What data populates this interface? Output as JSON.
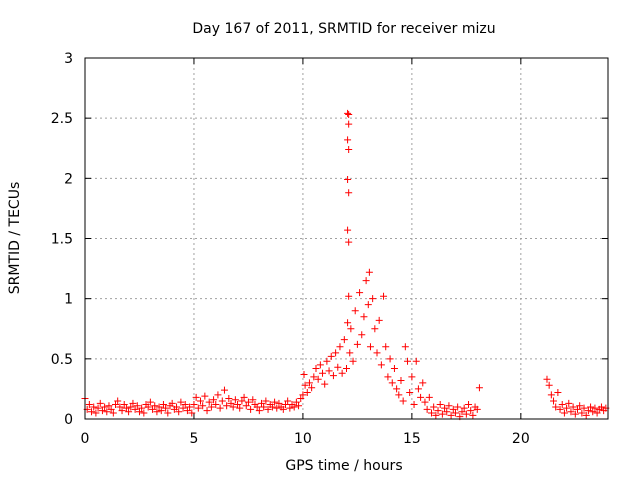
{
  "chart_data": {
    "type": "scatter",
    "title": "Day 167 of 2011, SRMTID for receiver mizu",
    "xlabel": "GPS time / hours",
    "ylabel": "SRMTID / TECUs",
    "xlim": [
      0,
      24
    ],
    "ylim": [
      0,
      3
    ],
    "xticks": [
      0,
      5,
      10,
      15,
      20
    ],
    "yticks": [
      0,
      0.5,
      1,
      1.5,
      2,
      2.5,
      3
    ],
    "xtick_labels": [
      "0",
      "5",
      "10",
      "15",
      "20"
    ],
    "ytick_labels": [
      "0",
      "0.5",
      "1",
      "1.5",
      "2",
      "2.5",
      "3"
    ],
    "grid": true,
    "marker": "+",
    "color": "#ff0000",
    "series": [
      {
        "name": "SRMTID",
        "points": [
          [
            0.0,
            0.17
          ],
          [
            0.1,
            0.08
          ],
          [
            0.2,
            0.12
          ],
          [
            0.3,
            0.06
          ],
          [
            0.4,
            0.1
          ],
          [
            0.5,
            0.05
          ],
          [
            0.6,
            0.09
          ],
          [
            0.7,
            0.13
          ],
          [
            0.8,
            0.07
          ],
          [
            0.9,
            0.1
          ],
          [
            1.0,
            0.06
          ],
          [
            1.1,
            0.11
          ],
          [
            1.2,
            0.08
          ],
          [
            1.3,
            0.05
          ],
          [
            1.4,
            0.12
          ],
          [
            1.5,
            0.15
          ],
          [
            1.6,
            0.1
          ],
          [
            1.7,
            0.07
          ],
          [
            1.8,
            0.12
          ],
          [
            1.9,
            0.09
          ],
          [
            2.0,
            0.06
          ],
          [
            2.1,
            0.1
          ],
          [
            2.2,
            0.13
          ],
          [
            2.3,
            0.08
          ],
          [
            2.4,
            0.11
          ],
          [
            2.5,
            0.06
          ],
          [
            2.6,
            0.09
          ],
          [
            2.7,
            0.05
          ],
          [
            2.8,
            0.12
          ],
          [
            2.9,
            0.1
          ],
          [
            3.0,
            0.14
          ],
          [
            3.1,
            0.08
          ],
          [
            3.2,
            0.11
          ],
          [
            3.3,
            0.06
          ],
          [
            3.4,
            0.1
          ],
          [
            3.5,
            0.07
          ],
          [
            3.6,
            0.12
          ],
          [
            3.7,
            0.09
          ],
          [
            3.8,
            0.05
          ],
          [
            3.9,
            0.11
          ],
          [
            4.0,
            0.13
          ],
          [
            4.1,
            0.08
          ],
          [
            4.2,
            0.1
          ],
          [
            4.3,
            0.06
          ],
          [
            4.4,
            0.14
          ],
          [
            4.5,
            0.09
          ],
          [
            4.6,
            0.12
          ],
          [
            4.7,
            0.07
          ],
          [
            4.8,
            0.1
          ],
          [
            4.9,
            0.05
          ],
          [
            5.0,
            0.12
          ],
          [
            5.1,
            0.18
          ],
          [
            5.2,
            0.09
          ],
          [
            5.3,
            0.15
          ],
          [
            5.4,
            0.11
          ],
          [
            5.5,
            0.19
          ],
          [
            5.6,
            0.07
          ],
          [
            5.7,
            0.14
          ],
          [
            5.8,
            0.1
          ],
          [
            5.9,
            0.16
          ],
          [
            6.0,
            0.12
          ],
          [
            6.1,
            0.2
          ],
          [
            6.2,
            0.09
          ],
          [
            6.3,
            0.15
          ],
          [
            6.4,
            0.24
          ],
          [
            6.5,
            0.11
          ],
          [
            6.6,
            0.17
          ],
          [
            6.7,
            0.13
          ],
          [
            6.8,
            0.1
          ],
          [
            6.9,
            0.16
          ],
          [
            7.0,
            0.12
          ],
          [
            7.1,
            0.09
          ],
          [
            7.2,
            0.15
          ],
          [
            7.3,
            0.18
          ],
          [
            7.4,
            0.11
          ],
          [
            7.5,
            0.14
          ],
          [
            7.6,
            0.08
          ],
          [
            7.7,
            0.16
          ],
          [
            7.8,
            0.12
          ],
          [
            7.9,
            0.1
          ],
          [
            8.0,
            0.07
          ],
          [
            8.1,
            0.13
          ],
          [
            8.2,
            0.1
          ],
          [
            8.3,
            0.15
          ],
          [
            8.4,
            0.08
          ],
          [
            8.5,
            0.12
          ],
          [
            8.6,
            0.1
          ],
          [
            8.7,
            0.14
          ],
          [
            8.8,
            0.09
          ],
          [
            8.9,
            0.13
          ],
          [
            9.0,
            0.1
          ],
          [
            9.1,
            0.08
          ],
          [
            9.2,
            0.12
          ],
          [
            9.3,
            0.15
          ],
          [
            9.4,
            0.09
          ],
          [
            9.5,
            0.12
          ],
          [
            9.6,
            0.1
          ],
          [
            9.7,
            0.14
          ],
          [
            9.8,
            0.11
          ],
          [
            9.9,
            0.17
          ],
          [
            10.0,
            0.2
          ],
          [
            10.05,
            0.37
          ],
          [
            10.1,
            0.28
          ],
          [
            10.2,
            0.22
          ],
          [
            10.3,
            0.3
          ],
          [
            10.4,
            0.26
          ],
          [
            10.5,
            0.35
          ],
          [
            10.6,
            0.42
          ],
          [
            10.7,
            0.33
          ],
          [
            10.8,
            0.45
          ],
          [
            10.9,
            0.38
          ],
          [
            11.0,
            0.29
          ],
          [
            11.1,
            0.48
          ],
          [
            11.2,
            0.4
          ],
          [
            11.3,
            0.52
          ],
          [
            11.4,
            0.36
          ],
          [
            11.5,
            0.55
          ],
          [
            11.6,
            0.43
          ],
          [
            11.7,
            0.6
          ],
          [
            11.8,
            0.38
          ],
          [
            11.9,
            0.66
          ],
          [
            12.0,
            0.42
          ],
          [
            12.05,
            0.8
          ],
          [
            12.1,
            1.02
          ],
          [
            12.15,
            0.55
          ],
          [
            12.2,
            0.75
          ],
          [
            12.3,
            0.48
          ],
          [
            12.4,
            0.9
          ],
          [
            12.5,
            0.62
          ],
          [
            12.6,
            1.05
          ],
          [
            12.7,
            0.7
          ],
          [
            12.8,
            0.85
          ],
          [
            12.9,
            1.15
          ],
          [
            13.0,
            0.95
          ],
          [
            13.05,
            1.22
          ],
          [
            13.1,
            0.6
          ],
          [
            13.2,
            1.0
          ],
          [
            13.3,
            0.75
          ],
          [
            13.4,
            0.55
          ],
          [
            13.5,
            0.82
          ],
          [
            13.6,
            0.45
          ],
          [
            13.7,
            1.02
          ],
          [
            13.8,
            0.6
          ],
          [
            13.9,
            0.35
          ],
          [
            14.0,
            0.5
          ],
          [
            14.1,
            0.3
          ],
          [
            14.2,
            0.42
          ],
          [
            14.3,
            0.25
          ],
          [
            14.4,
            0.2
          ],
          [
            14.5,
            0.32
          ],
          [
            14.6,
            0.15
          ],
          [
            14.7,
            0.6
          ],
          [
            14.8,
            0.48
          ],
          [
            14.9,
            0.22
          ],
          [
            15.0,
            0.35
          ],
          [
            15.1,
            0.12
          ],
          [
            15.2,
            0.48
          ],
          [
            15.3,
            0.25
          ],
          [
            15.4,
            0.18
          ],
          [
            15.5,
            0.3
          ],
          [
            15.6,
            0.14
          ],
          [
            15.7,
            0.08
          ],
          [
            15.8,
            0.18
          ],
          [
            15.9,
            0.05
          ],
          [
            16.0,
            0.1
          ],
          [
            16.1,
            0.03
          ],
          [
            16.2,
            0.07
          ],
          [
            16.3,
            0.12
          ],
          [
            16.4,
            0.04
          ],
          [
            16.5,
            0.09
          ],
          [
            16.6,
            0.06
          ],
          [
            16.7,
            0.11
          ],
          [
            16.8,
            0.03
          ],
          [
            16.9,
            0.08
          ],
          [
            17.0,
            0.05
          ],
          [
            17.1,
            0.1
          ],
          [
            17.2,
            0.02
          ],
          [
            17.3,
            0.06
          ],
          [
            17.4,
            0.09
          ],
          [
            17.5,
            0.04
          ],
          [
            17.6,
            0.12
          ],
          [
            17.7,
            0.07
          ],
          [
            17.8,
            0.03
          ],
          [
            17.9,
            0.1
          ],
          [
            18.0,
            0.08
          ],
          [
            18.1,
            0.26
          ],
          [
            12.05,
            2.54
          ],
          [
            12.1,
            2.53
          ],
          [
            12.1,
            2.45
          ],
          [
            12.05,
            2.32
          ],
          [
            12.1,
            2.24
          ],
          [
            12.05,
            1.99
          ],
          [
            12.1,
            1.88
          ],
          [
            12.05,
            1.57
          ],
          [
            12.1,
            1.47
          ],
          [
            21.2,
            0.33
          ],
          [
            21.3,
            0.28
          ],
          [
            21.4,
            0.2
          ],
          [
            21.5,
            0.15
          ],
          [
            21.6,
            0.1
          ],
          [
            21.7,
            0.22
          ],
          [
            21.8,
            0.08
          ],
          [
            21.9,
            0.12
          ],
          [
            22.0,
            0.05
          ],
          [
            22.1,
            0.09
          ],
          [
            22.2,
            0.13
          ],
          [
            22.3,
            0.06
          ],
          [
            22.4,
            0.1
          ],
          [
            22.5,
            0.04
          ],
          [
            22.6,
            0.08
          ],
          [
            22.7,
            0.11
          ],
          [
            22.8,
            0.05
          ],
          [
            22.9,
            0.09
          ],
          [
            23.0,
            0.03
          ],
          [
            23.1,
            0.07
          ],
          [
            23.2,
            0.1
          ],
          [
            23.3,
            0.06
          ],
          [
            23.4,
            0.09
          ],
          [
            23.5,
            0.05
          ],
          [
            23.6,
            0.08
          ],
          [
            23.7,
            0.1
          ],
          [
            23.8,
            0.07
          ],
          [
            23.9,
            0.09
          ]
        ]
      }
    ]
  }
}
